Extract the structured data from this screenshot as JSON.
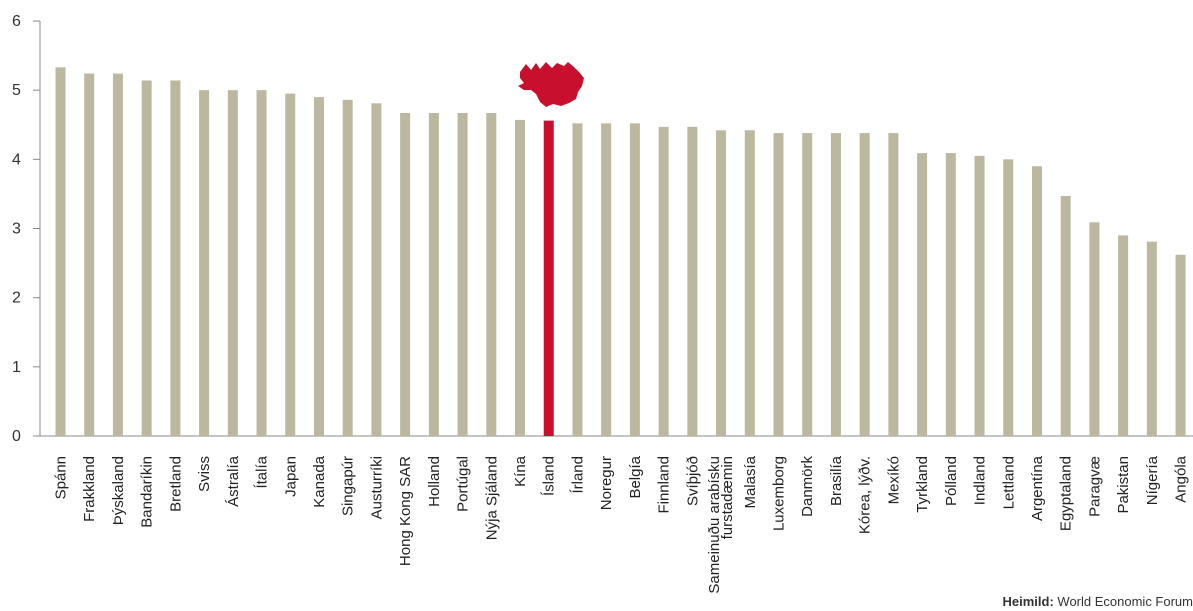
{
  "chart_data": {
    "type": "bar",
    "categories": [
      "Spánn",
      "Frakkland",
      "Þýskaland",
      "Bandaríkin",
      "Bretland",
      "Sviss",
      "Ástralía",
      "Ítalía",
      "Japan",
      "Kanada",
      "Singapúr",
      "Austurríki",
      "Hong Kong SAR",
      "Holland",
      "Portúgal",
      "Nýja Sjáland",
      "Kína",
      "Ísland",
      "Írland",
      "Noregur",
      "Belgía",
      "Finnland",
      "Svíþjóð",
      "Sameinuðu arabísku furstadæmin",
      "Malasía",
      "Luxemborg",
      "Danmörk",
      "Brasilía",
      "Kórea, lýðv.",
      "Mexíkó",
      "Tyrkland",
      "Pólland",
      "Indland",
      "Lettland",
      "Argentína",
      "Egyptaland",
      "Paragvæ",
      "Pakistan",
      "Nígería",
      "Angóla"
    ],
    "values": [
      5.33,
      5.24,
      5.24,
      5.14,
      5.14,
      5.0,
      5.0,
      5.0,
      4.95,
      4.9,
      4.86,
      4.81,
      4.67,
      4.67,
      4.67,
      4.67,
      4.57,
      4.56,
      4.52,
      4.52,
      4.52,
      4.47,
      4.47,
      4.42,
      4.42,
      4.38,
      4.38,
      4.38,
      4.38,
      4.38,
      4.09,
      4.09,
      4.05,
      4.0,
      3.9,
      3.47,
      3.09,
      2.9,
      2.81,
      2.62
    ],
    "highlight_category": "Ísland",
    "y_ticks": [
      "0",
      "1",
      "2",
      "3",
      "4",
      "5",
      "6"
    ],
    "ylim": [
      0,
      6
    ],
    "grid": false,
    "colors": {
      "bar": "#bcb89f",
      "highlight": "#c8102e",
      "axis": "#888888"
    }
  },
  "footer": {
    "source_label": "Heimild:",
    "source_text": "World Economic Forum"
  },
  "icons": {
    "highlight_marker": "iceland-map-icon"
  }
}
